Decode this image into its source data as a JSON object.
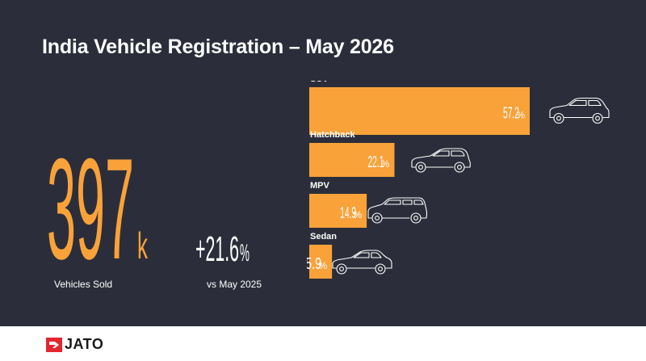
{
  "title": "India Vehicle Registration – May 2026",
  "headline": {
    "value": "397",
    "suffix": "k",
    "label": "Vehicles Sold"
  },
  "change": {
    "value": "+21.6",
    "suffix": "%",
    "label": "vs May 2025"
  },
  "chart_data": {
    "type": "bar",
    "orientation": "horizontal",
    "categories": [
      "SUV",
      "Hatchback",
      "MPV",
      "Sedan"
    ],
    "values": [
      57.2,
      22.1,
      14.9,
      5.9
    ],
    "value_labels": [
      "57.2%",
      "22.1%",
      "14.9%",
      "5.9%"
    ],
    "icons": [
      "suv-icon",
      "hatchback-icon",
      "mpv-icon",
      "sedan-icon"
    ],
    "unit": "%",
    "bar_color": "#f9a23a",
    "text_color": "#ffffff"
  },
  "footer": {
    "brand": "JATO",
    "logo_color": "#e3262f"
  },
  "colors": {
    "background": "#2b2e3a",
    "accent": "#f9a23a"
  }
}
